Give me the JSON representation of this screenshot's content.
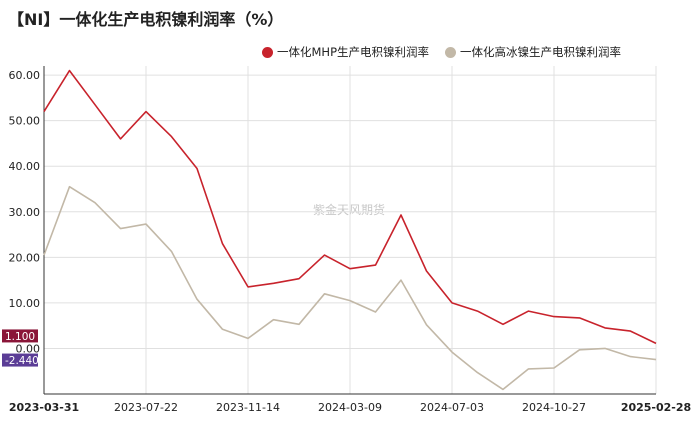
{
  "title": "【NI】一体化生产电积镍利润率（%）",
  "watermark": "紫金天风期货",
  "colors": {
    "mhp": "#c8232c",
    "ice": "#c2b8a7",
    "tag_last_mhp": "#8a1538",
    "tag_last_ice": "#5b3d96",
    "grid": "#e0e0e0",
    "axis": "#333333"
  },
  "chart_data": {
    "type": "line",
    "title": "【NI】一体化生产电积镍利润率（%）",
    "xlabel": "",
    "ylabel": "",
    "ylim": [
      -10,
      62
    ],
    "yticks": [
      0,
      10,
      20,
      30,
      40,
      50,
      60
    ],
    "ytick_labels": [
      "0.00",
      "10.00",
      "20.00",
      "30.00",
      "40.00",
      "50.00",
      "60.00"
    ],
    "grid": true,
    "legend": "top-right",
    "x_tick_labels": [
      {
        "label": "2023-03-31",
        "index": 0,
        "bold": true
      },
      {
        "label": "2023-07-22",
        "index": 4,
        "bold": false
      },
      {
        "label": "2023-11-14",
        "index": 8,
        "bold": false
      },
      {
        "label": "2024-03-09",
        "index": 12,
        "bold": false
      },
      {
        "label": "2024-07-03",
        "index": 16,
        "bold": false
      },
      {
        "label": "2024-10-27",
        "index": 20,
        "bold": false
      },
      {
        "label": "2025-02-28",
        "index": 24,
        "bold": true
      }
    ],
    "n_points": 25,
    "series": [
      {
        "name": "一体化MHP生产电积镍利润率",
        "color": "#c8232c",
        "values": [
          52.0,
          61.0,
          53.5,
          46.0,
          52.0,
          46.5,
          39.5,
          23.0,
          13.5,
          14.3,
          15.3,
          20.5,
          17.5,
          18.3,
          29.3,
          17.0,
          10.0,
          8.2,
          5.3,
          8.2,
          7.0,
          6.7,
          4.5,
          3.8,
          1.1
        ]
      },
      {
        "name": "一体化高冰镍生产电积镍利润率",
        "color": "#c2b8a7",
        "values": [
          20.5,
          35.5,
          32.0,
          26.3,
          27.3,
          21.3,
          10.8,
          4.2,
          2.2,
          6.3,
          5.3,
          12.0,
          10.5,
          8.0,
          15.0,
          5.2,
          -0.8,
          -5.3,
          -9.0,
          -4.5,
          -4.3,
          -0.3,
          0.0,
          -1.8,
          -2.44
        ]
      }
    ],
    "last_values": [
      {
        "label": "1.100",
        "value": 1.1,
        "color": "#8a1538"
      },
      {
        "label": "-2.440",
        "value": -2.44,
        "color": "#5b3d96"
      }
    ]
  }
}
